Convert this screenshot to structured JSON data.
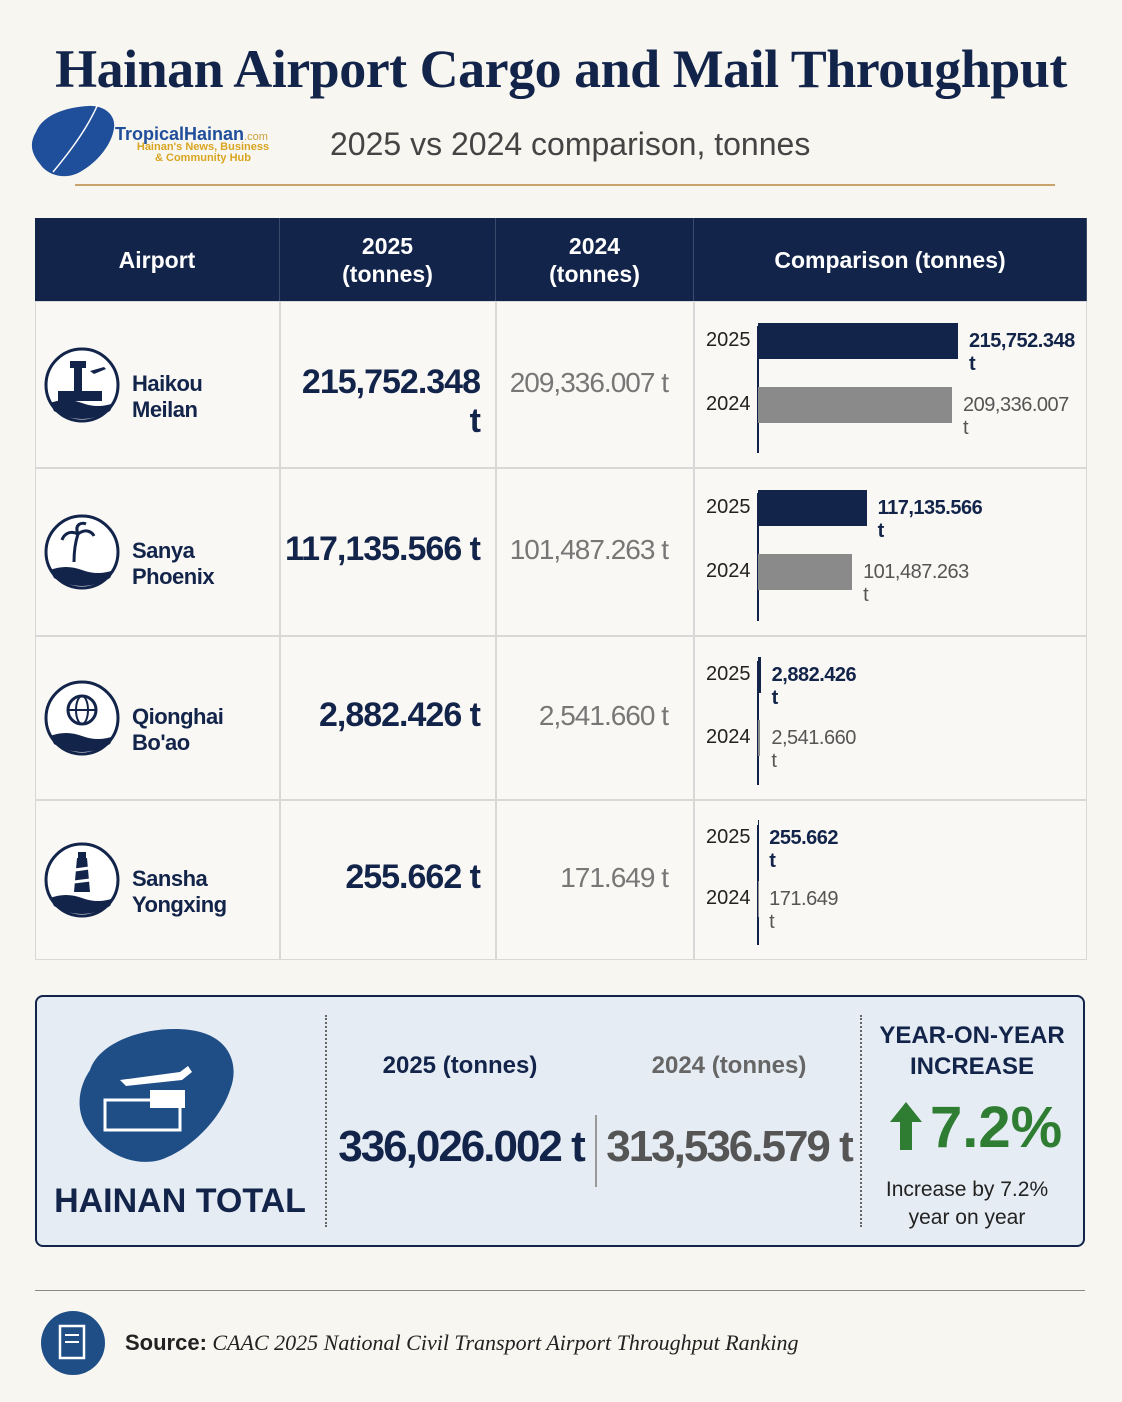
{
  "header": {
    "title": "Hainan Airport Cargo and Mail Throughput",
    "subtitle": "2025 vs 2024 comparison, tonnes",
    "logo": {
      "name": "TropicalHainan",
      "domain": ".com",
      "tagline": "Hainan's News, Business\n& Community Hub"
    }
  },
  "table": {
    "columns": [
      "Airport",
      "2025\n(tonnes)",
      "2024\n(tonnes)",
      "Comparison (tonnes)"
    ],
    "bar_years": [
      "2025",
      "2024"
    ],
    "colors": {
      "2025": "#13244a",
      "2024": "#8a8a8a"
    },
    "rows": [
      {
        "airport": "Haikou Meilan",
        "value_2025": 215752.348,
        "label_2025": "215,752.348 t",
        "value_2024": 209336.007,
        "label_2024": "209,336.007 t"
      },
      {
        "airport": "Sanya Phoenix",
        "value_2025": 117135.566,
        "label_2025": "117,135.566 t",
        "value_2024": 101487.263,
        "label_2024": "101,487.263 t"
      },
      {
        "airport": "Qionghai Bo'ao",
        "value_2025": 2882.426,
        "label_2025": "2,882.426 t",
        "value_2024": 2541.66,
        "label_2024": "2,541.660 t"
      },
      {
        "airport": "Sansha Yongxing",
        "value_2025": 255.662,
        "label_2025": "255.662 t",
        "value_2024": 171.649,
        "label_2024": "171.649 t"
      }
    ]
  },
  "total": {
    "label": "HAINAN TOTAL",
    "header_2025": "2025 (tonnes)",
    "header_2024": "2024 (tonnes)",
    "value_2025": "336,026.002 t",
    "value_2024": "313,536.579 t",
    "growth_title": "YEAR-ON-YEAR\nINCREASE",
    "growth_value": "7.2%",
    "growth_note": "Increase by 7.2%\nyear on year"
  },
  "source": {
    "label": "Source:",
    "text": "CAAC 2025 National Civil Transport Airport Throughput Ranking"
  }
}
